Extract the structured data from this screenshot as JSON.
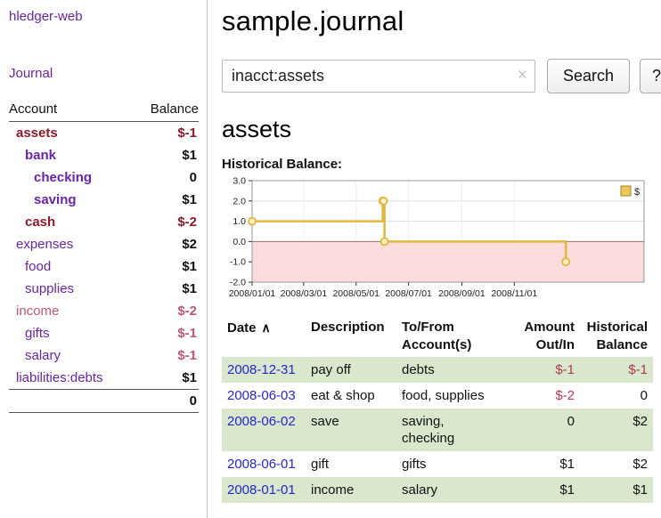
{
  "colors": {
    "link_purple": "#6a24a8",
    "date_blue": "#2525d2",
    "negative_dark": "#8c1a2b",
    "negative_soft": "#c0557a",
    "row_green": "#d9e8cc",
    "chart_line": "#e0b83e",
    "chart_negative_region": "#fbdcdc"
  },
  "sidebar": {
    "app_title": "hledger-web",
    "journal_link": "Journal",
    "accounts": {
      "header_account": "Account",
      "header_balance": "Balance",
      "rows": [
        {
          "name": "assets",
          "balance": "$-1"
        },
        {
          "name": "bank",
          "balance": "$1"
        },
        {
          "name": "checking",
          "balance": "0"
        },
        {
          "name": "saving",
          "balance": "$1"
        },
        {
          "name": "cash",
          "balance": "$-2"
        },
        {
          "name": "expenses",
          "balance": "$2"
        },
        {
          "name": "food",
          "balance": "$1"
        },
        {
          "name": "supplies",
          "balance": "$1"
        },
        {
          "name": "income",
          "balance": "$-2"
        },
        {
          "name": "gifts",
          "balance": "$-1"
        },
        {
          "name": "salary",
          "balance": "$-1"
        },
        {
          "name": "liabilities:debts",
          "balance": "$1"
        }
      ],
      "total": "0"
    }
  },
  "main": {
    "title": "sample.journal",
    "search": {
      "value": "inacct:assets",
      "clear_icon": "×",
      "button": "Search",
      "help": "?"
    },
    "account_heading": "assets",
    "chart_label": "Historical Balance:",
    "register": {
      "headers": {
        "date": "Date",
        "sort_icon": "∧",
        "description": "Description",
        "accounts": "To/From\nAccount(s)",
        "amount": "Amount\nOut/In",
        "balance": "Historical\nBalance"
      },
      "rows": [
        {
          "date": "2008-12-31",
          "description": "pay off",
          "accounts": "debts",
          "amount": "$-1",
          "balance": "$-1"
        },
        {
          "date": "2008-06-03",
          "description": "eat & shop",
          "accounts": "food, supplies",
          "amount": "$-2",
          "balance": "0"
        },
        {
          "date": "2008-06-02",
          "description": "save",
          "accounts": "saving,\nchecking",
          "amount": "0",
          "balance": "$2"
        },
        {
          "date": "2008-06-01",
          "description": "gift",
          "accounts": "gifts",
          "amount": "$1",
          "balance": "$2"
        },
        {
          "date": "2008-01-01",
          "description": "income",
          "accounts": "salary",
          "amount": "$1",
          "balance": "$1"
        }
      ]
    }
  },
  "chart_data": {
    "type": "line",
    "title": "Historical Balance",
    "step": true,
    "legend": "$",
    "legend_position": "top-right",
    "grid": true,
    "x_domain": [
      "2008-01-01",
      "2009-04-01"
    ],
    "y_domain": [
      -2,
      3
    ],
    "y_ticks": [
      3.0,
      2.0,
      1.0,
      0.0,
      -1.0,
      -2.0
    ],
    "x_ticks": [
      "2008/01/01",
      "2008/03/01",
      "2008/05/01",
      "2008/07/01",
      "2008/09/01",
      "2008/11/01"
    ],
    "negative_region_color": "#fbdcdc",
    "series": [
      {
        "name": "$",
        "color": "#e0b83e",
        "points": [
          [
            "2008-01-01",
            1
          ],
          [
            "2008-06-01",
            2
          ],
          [
            "2008-06-02",
            2
          ],
          [
            "2008-06-03",
            0
          ],
          [
            "2008-12-31",
            -1
          ]
        ]
      }
    ]
  }
}
